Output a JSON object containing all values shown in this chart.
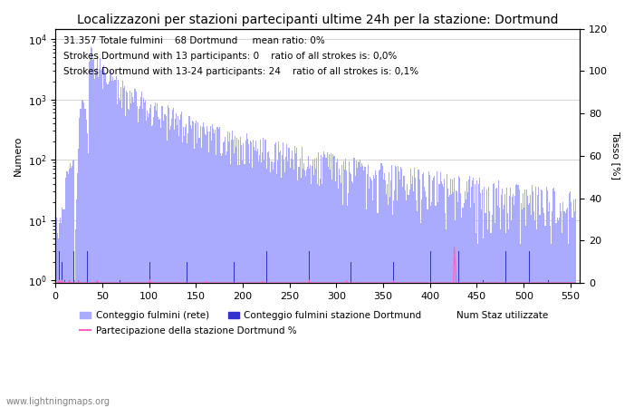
{
  "title": "Localizzazoni per stazioni partecipanti ultime 24h per la stazione: Dortmund",
  "ylabel_left": "Numero",
  "ylabel_right": "Tasso [%]",
  "annotation_lines": [
    "31.357 Totale fulmini    68 Dortmund     mean ratio: 0%",
    "Strokes Dortmund with 13 participants: 0    ratio of all strokes is: 0,0%",
    "Strokes Dortmund with 13-24 participants: 24    ratio of all strokes is: 0,1%"
  ],
  "watermark": "www.lightningmaps.org",
  "xlim": [
    0,
    560
  ],
  "ylim_left": [
    0.9,
    15000
  ],
  "ylim_right": [
    0,
    120
  ],
  "right_yticks": [
    0,
    20,
    40,
    60,
    80,
    100,
    120
  ],
  "bar_color_network": "#aaaaff",
  "bar_color_station": "#3333cc",
  "line_color_participation": "#ff66bb",
  "legend_labels": [
    "Conteggio fulmini (rete)",
    "Conteggio fulmini stazione Dortmund",
    "Num Staz utilizzate",
    "Partecipazione della stazione Dortmund %"
  ],
  "title_fontsize": 10,
  "label_fontsize": 8,
  "annotation_fontsize": 7.5
}
